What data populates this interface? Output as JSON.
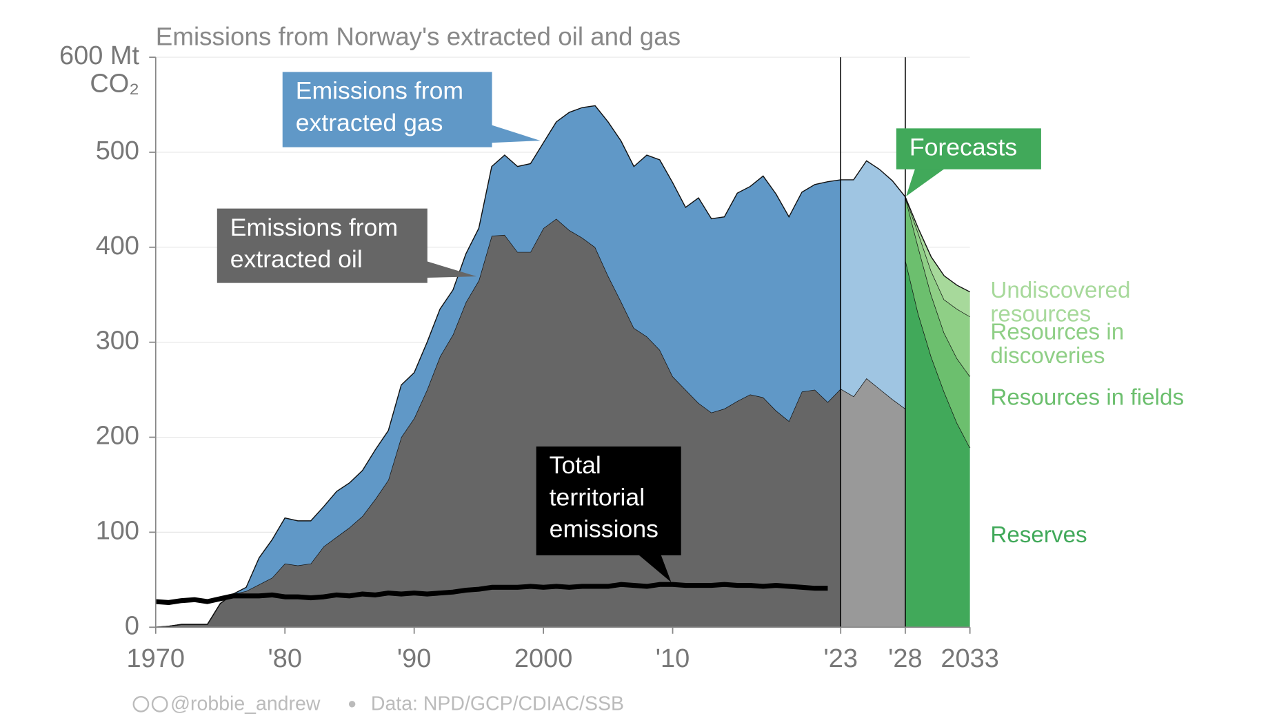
{
  "chart_data": {
    "type": "area",
    "title": "Emissions from Norway's extracted oil and gas",
    "y_unit": "CO₂",
    "xlim": [
      1970,
      2033
    ],
    "ylim": [
      0,
      600
    ],
    "xticks": [
      1970,
      {
        "value": 1980,
        "label": "'80"
      },
      {
        "value": 1990,
        "label": "'90"
      },
      2000,
      {
        "value": 2010,
        "label": "'10"
      },
      {
        "value": 2023,
        "label": "'23"
      },
      {
        "value": 2028,
        "label": "'28"
      },
      2033
    ],
    "yticks": [
      0,
      100,
      200,
      300,
      400,
      500,
      {
        "value": 600,
        "label": "600 Mt"
      }
    ],
    "grid": true,
    "vlines": [
      2023,
      2028
    ],
    "x": [
      1970,
      1971,
      1972,
      1973,
      1974,
      1975,
      1976,
      1977,
      1978,
      1979,
      1980,
      1981,
      1982,
      1983,
      1984,
      1985,
      1986,
      1987,
      1988,
      1989,
      1990,
      1991,
      1992,
      1993,
      1994,
      1995,
      1996,
      1997,
      1998,
      1999,
      2000,
      2001,
      2002,
      2003,
      2004,
      2005,
      2006,
      2007,
      2008,
      2009,
      2010,
      2011,
      2012,
      2013,
      2014,
      2015,
      2016,
      2017,
      2018,
      2019,
      2020,
      2021,
      2022,
      2023,
      2024,
      2025,
      2026,
      2027,
      2028
    ],
    "series": [
      {
        "name": "Emissions from extracted oil",
        "colors": [
          "#666666",
          "#999999"
        ],
        "values": [
          0,
          1,
          3,
          3,
          3,
          25,
          35,
          38,
          45,
          52,
          67,
          65,
          67,
          85,
          95,
          105,
          117,
          135,
          155,
          200,
          220,
          250,
          285,
          308,
          342,
          365,
          412,
          413,
          395,
          395,
          420,
          430,
          418,
          410,
          400,
          370,
          343,
          315,
          306,
          292,
          264,
          250,
          236,
          226,
          230,
          238,
          245,
          242,
          228,
          217,
          248,
          250,
          237,
          251,
          243,
          262,
          251,
          240,
          230
        ]
      },
      {
        "name": "Emissions from extracted gas",
        "colors": [
          "#6098c7",
          "#9fc5e2"
        ],
        "values": [
          0,
          0,
          0,
          0,
          0,
          0,
          0,
          4,
          28,
          40,
          48,
          47,
          45,
          42,
          48,
          47,
          48,
          52,
          52,
          55,
          48,
          50,
          50,
          47,
          51,
          55,
          73,
          84,
          90,
          93,
          90,
          102,
          124,
          137,
          149,
          162,
          169,
          170,
          191,
          200,
          204,
          192,
          216,
          204,
          202,
          219,
          219,
          233,
          228,
          215,
          210,
          216,
          232,
          220,
          228,
          229,
          231,
          230,
          223
        ]
      }
    ],
    "forecast": {
      "label": "Forecasts",
      "color": "#41a95a",
      "x": [
        2028,
        2029,
        2030,
        2031,
        2032,
        2033
      ],
      "series": [
        {
          "name": "Reserves",
          "color": "#41a95a",
          "values": [
            387,
            330,
            285,
            248,
            215,
            189
          ]
        },
        {
          "name": "Resources in fields",
          "color": "#6cbf6e",
          "values": [
            66,
            70,
            65,
            62,
            68,
            75
          ]
        },
        {
          "name": "Resources in discoveries",
          "color": "#8fcf86",
          "values": [
            0,
            15,
            25,
            35,
            52,
            63
          ]
        },
        {
          "name": "Undiscovered resources",
          "color": "#a7d99b",
          "values": [
            0,
            5,
            15,
            25,
            25,
            26
          ]
        }
      ]
    },
    "line": {
      "name": "Total territorial emissions",
      "color": "#000000",
      "x": [
        1970,
        1971,
        1972,
        1973,
        1974,
        1975,
        1976,
        1977,
        1978,
        1979,
        1980,
        1981,
        1982,
        1983,
        1984,
        1985,
        1986,
        1987,
        1988,
        1989,
        1990,
        1991,
        1992,
        1993,
        1994,
        1995,
        1996,
        1997,
        1998,
        1999,
        2000,
        2001,
        2002,
        2003,
        2004,
        2005,
        2006,
        2007,
        2008,
        2009,
        2010,
        2011,
        2012,
        2013,
        2014,
        2015,
        2016,
        2017,
        2018,
        2019,
        2020,
        2021,
        2022
      ],
      "values": [
        27,
        26,
        28,
        29,
        27,
        30,
        33,
        33,
        33,
        34,
        32,
        32,
        31,
        32,
        34,
        33,
        35,
        34,
        36,
        35,
        36,
        35,
        36,
        37,
        39,
        40,
        42,
        42,
        42,
        43,
        42,
        43,
        42,
        43,
        43,
        43,
        45,
        44,
        43,
        45,
        45,
        44,
        44,
        44,
        45,
        44,
        44,
        43,
        44,
        43,
        42,
        41,
        41
      ]
    },
    "credit": "@robbie_andrew",
    "source": "Data: NPD/GCP/CDIAC/SSB"
  }
}
